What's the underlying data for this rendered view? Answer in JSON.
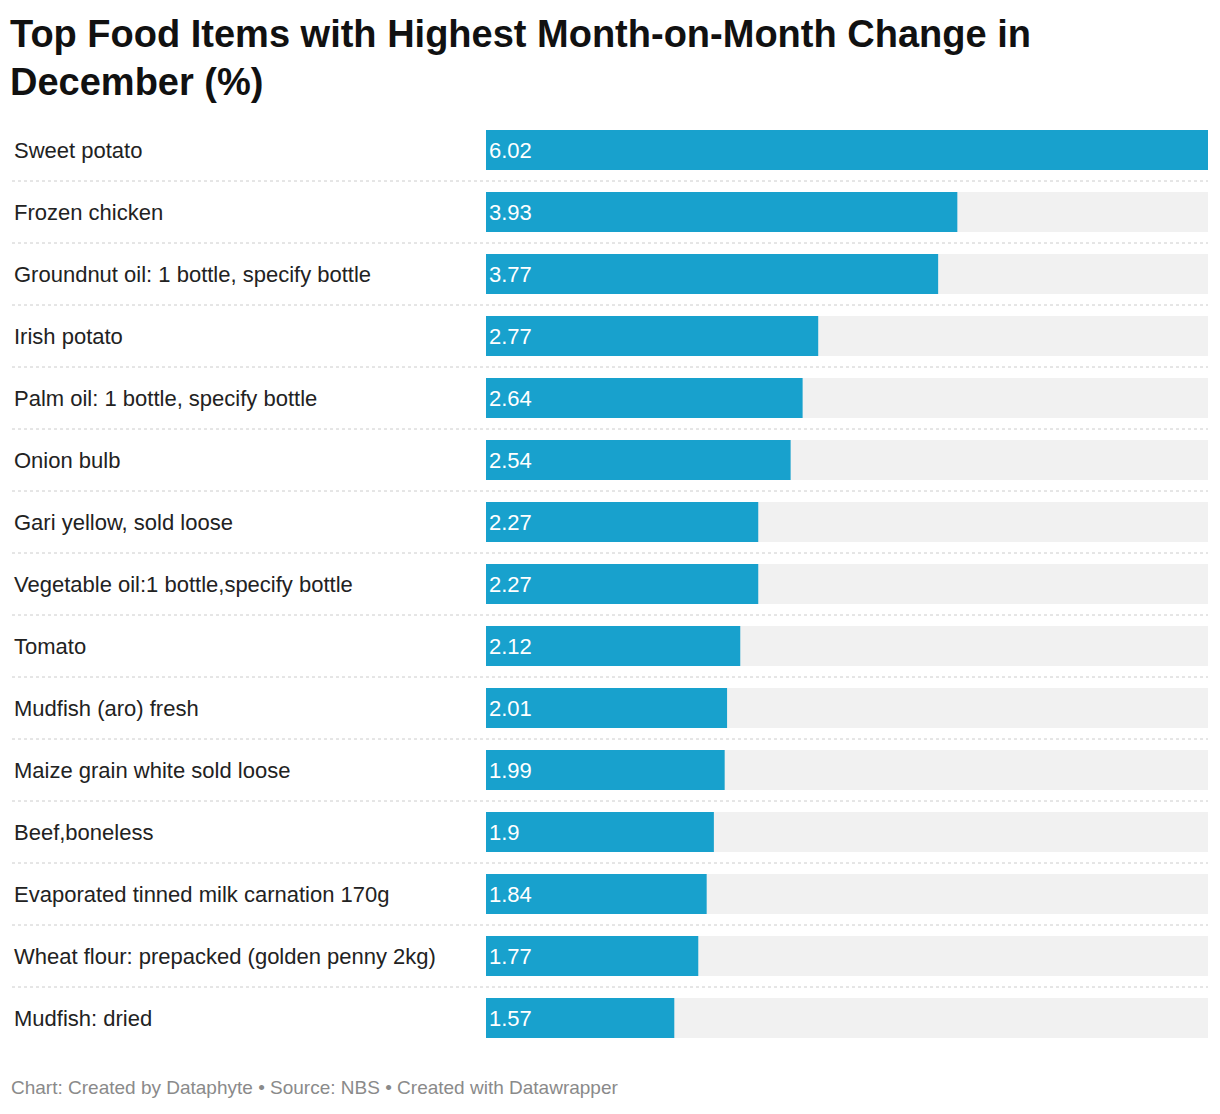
{
  "chart_data": {
    "type": "bar",
    "orientation": "horizontal",
    "title": "Top Food Items with Highest Month-on-Month Change in December (%)",
    "caption": "Chart: Created by Dataphyte • Source: NBS • Created with Datawrapper",
    "categories": [
      "Sweet potato",
      "Frozen chicken",
      "Groundnut oil: 1 bottle, specify bottle",
      "Irish potato",
      "Palm oil: 1 bottle, specify bottle",
      "Onion bulb",
      "Gari yellow, sold loose",
      "Vegetable oil:1 bottle,specify bottle",
      "Tomato",
      "Mudfish (aro) fresh",
      "Maize grain white sold loose",
      "Beef,boneless",
      "Evaporated tinned milk carnation 170g",
      "Wheat flour: prepacked (golden penny 2kg)",
      "Mudfish: dried"
    ],
    "values": [
      6.02,
      3.93,
      3.77,
      2.77,
      2.64,
      2.54,
      2.27,
      2.27,
      2.12,
      2.01,
      1.99,
      1.9,
      1.84,
      1.77,
      1.57
    ],
    "color": "#18a1cd",
    "xlim": [
      0,
      6.02
    ],
    "xticks": [],
    "grid": false,
    "data_labels": true,
    "tick_labels": "y"
  }
}
